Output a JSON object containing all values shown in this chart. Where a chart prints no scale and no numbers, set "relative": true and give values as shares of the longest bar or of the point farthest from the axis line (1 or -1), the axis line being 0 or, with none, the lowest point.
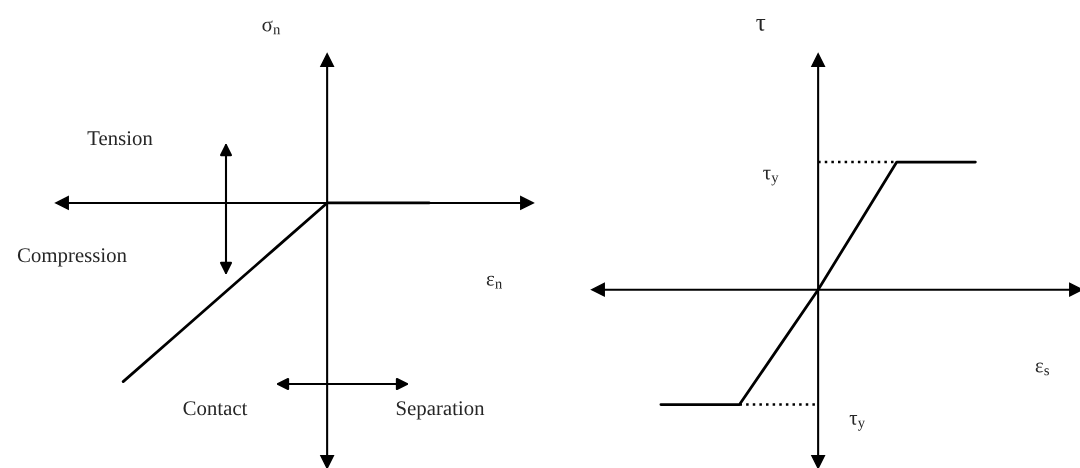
{
  "chart_data": [
    {
      "type": "line",
      "relative": true,
      "xlabel": "ε$_{n}$",
      "ylabel": "σ$_{n}$",
      "categories": [
        null,
        null,
        null,
        null,
        null,
        null,
        null
      ],
      "series": [
        {
          "color": "#000000",
          "values": [
            -1,
            -0.75,
            -0.5,
            -0.25,
            0,
            0,
            0
          ]
        }
      ],
      "annotations": [
        "Tension",
        "Compression",
        "Contact",
        "Separation"
      ],
      "marker": "none",
      "line_style": "solid"
    },
    {
      "type": "line",
      "relative": true,
      "xlabel": "ε$_{s}$",
      "ylabel": "τ",
      "categories": [
        null,
        null,
        null,
        null,
        null,
        null,
        null,
        null,
        null
      ],
      "series": [
        {
          "color": "#000000",
          "values": [
            -0.9,
            -0.9,
            -0.9,
            -0.45,
            0,
            0.5,
            1,
            1,
            1
          ]
        },
        {
          "color": "#000000",
          "values": [
            null,
            null,
            null,
            null,
            1,
            1,
            1,
            null,
            null
          ],
          "line_style": "dotted"
        },
        {
          "color": "#000000",
          "values": [
            null,
            null,
            -0.9,
            -0.9,
            -0.9,
            null,
            null,
            null,
            null
          ],
          "line_style": "dotted"
        }
      ],
      "annotations": [
        "τ$_{y}$",
        "τ$_{y}$"
      ],
      "marker": "none",
      "line_style": "solid"
    }
  ]
}
